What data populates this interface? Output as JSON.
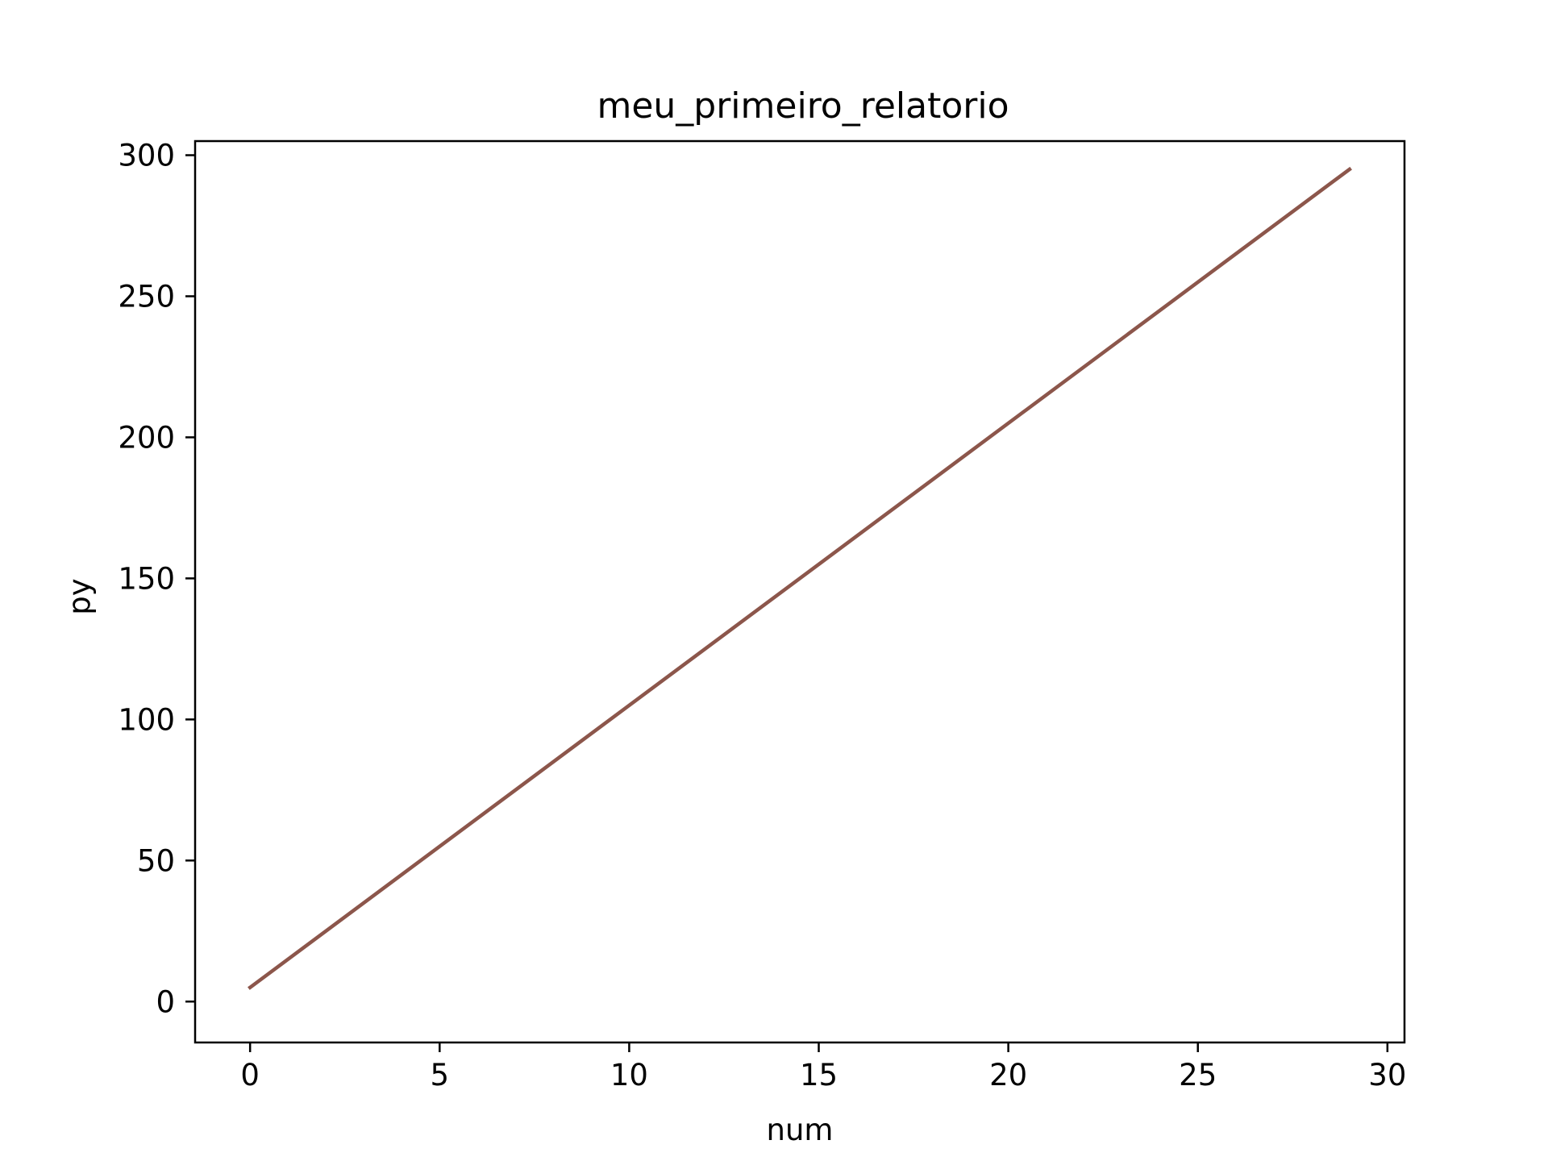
{
  "chart_data": {
    "type": "line",
    "title": "meu_primeiro_relatorio",
    "xlabel": "num",
    "ylabel": "py",
    "xlim": [
      -1.45,
      30.45
    ],
    "ylim": [
      -14.5,
      305
    ],
    "xticks": [
      0,
      5,
      10,
      15,
      20,
      25,
      30
    ],
    "yticks": [
      0,
      50,
      100,
      150,
      200,
      250,
      300
    ],
    "grid": false,
    "series": [
      {
        "color": "#8c564b",
        "x": [
          0,
          29
        ],
        "y": [
          5,
          295
        ]
      }
    ]
  }
}
